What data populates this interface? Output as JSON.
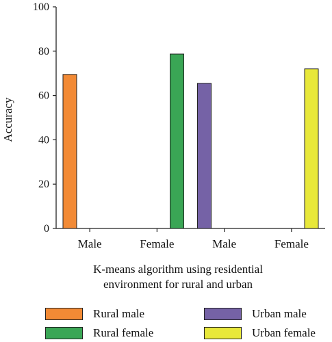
{
  "chart_data": {
    "type": "bar",
    "categories": [
      "Male",
      "Female",
      "Male",
      "Female"
    ],
    "ylabel": "Accuracy",
    "xlabel_lines": [
      "K-means algorithm using residential",
      "environment for rural and urban"
    ],
    "ylim": [
      0,
      100
    ],
    "yticks": [
      0,
      20,
      40,
      60,
      80,
      100
    ],
    "grid": false,
    "legend_position": "bottom",
    "series": [
      {
        "name": "Rural male",
        "color": "#f28a35",
        "values": [
          69.5,
          null,
          null,
          null
        ]
      },
      {
        "name": "Rural female",
        "color": "#3aa655",
        "values": [
          null,
          78.7,
          null,
          null
        ]
      },
      {
        "name": "Urban male",
        "color": "#7562a6",
        "values": [
          null,
          null,
          65.5,
          null
        ]
      },
      {
        "name": "Urban female",
        "color": "#e8e83a",
        "values": [
          null,
          null,
          null,
          72
        ]
      }
    ]
  }
}
